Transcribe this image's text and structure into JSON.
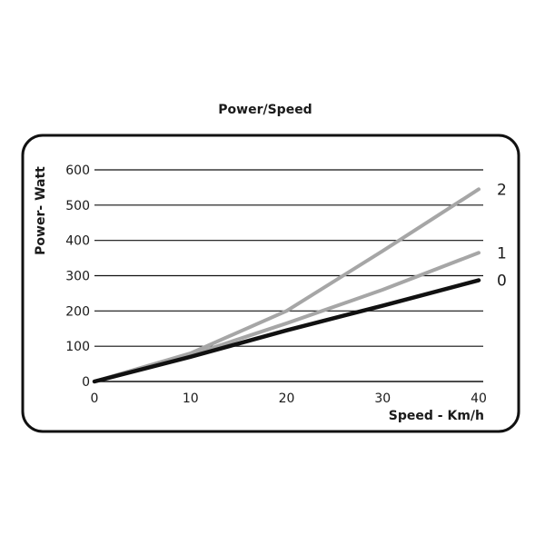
{
  "chart_data": {
    "type": "line",
    "title": "Power/Speed",
    "xlabel": "Speed - Km/h",
    "ylabel": "Power- Watt",
    "xlim": [
      0,
      40
    ],
    "ylim": [
      0,
      600
    ],
    "x_ticks": [
      "0",
      "10",
      "20",
      "30",
      "40"
    ],
    "y_ticks": [
      "0",
      "100",
      "200",
      "300",
      "400",
      "500",
      "600"
    ],
    "grid": "horizontal",
    "series": [
      {
        "name": "2",
        "color": "#a6a6a6",
        "x": [
          0,
          10,
          20,
          30,
          40
        ],
        "y": [
          0,
          80,
          200,
          370,
          545
        ]
      },
      {
        "name": "1",
        "color": "#a6a6a6",
        "x": [
          0,
          10,
          20,
          30,
          40
        ],
        "y": [
          0,
          75,
          165,
          260,
          365
        ]
      },
      {
        "name": "0",
        "color": "#111111",
        "x": [
          0,
          10,
          20,
          30,
          40
        ],
        "y": [
          0,
          70,
          145,
          215,
          287
        ]
      }
    ]
  }
}
